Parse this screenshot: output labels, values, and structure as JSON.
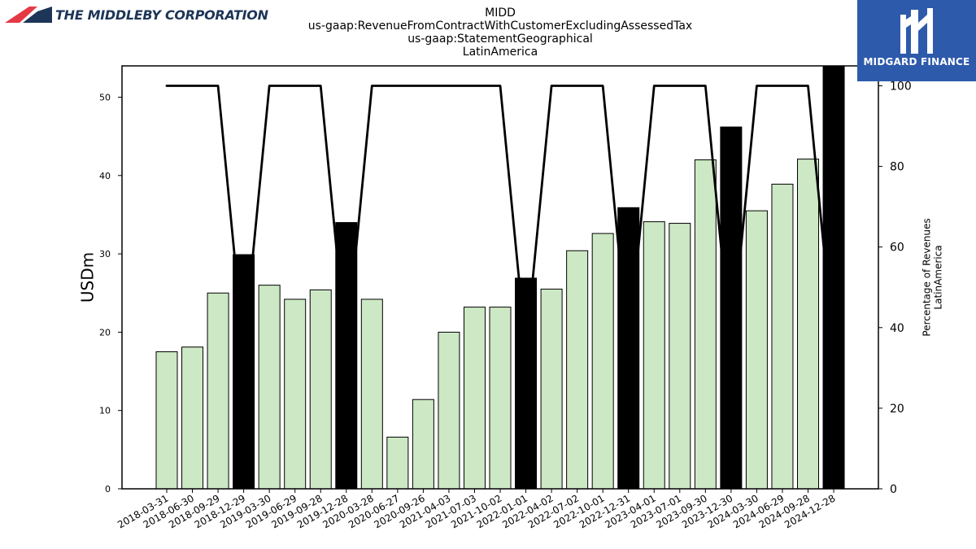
{
  "header": {
    "title_lines": [
      "MIDD",
      "us-gaap:RevenueFromContractWithCustomerExcludingAssessedTax",
      "us-gaap:StatementGeographical",
      "LatinAmerica"
    ]
  },
  "logos": {
    "left_text": "THE MIDDLEBY CORPORATION",
    "right_text": "MIDGARD FINANCE"
  },
  "colors": {
    "bar_light": "#cce8c4",
    "bar_dark": "#000000",
    "line": "#000000",
    "logo_blue": "#2e5aab",
    "logo_red": "#e63946",
    "logo_navy": "#1d3557"
  },
  "chart_data": {
    "type": "bar",
    "ylabel": "USDm",
    "y2label_lines": [
      "Percentage of Revenues",
      "LatinAmerica"
    ],
    "ylim": [
      0,
      54
    ],
    "y_ticks": [
      0,
      10,
      20,
      30,
      40,
      50
    ],
    "y2lim": [
      0,
      100
    ],
    "y2_ticks": [
      0,
      20,
      40,
      60,
      80,
      100
    ],
    "grid": false,
    "categories": [
      "2018-03-31",
      "2018-06-30",
      "2018-09-29",
      "2018-12-29",
      "2019-03-30",
      "2019-06-29",
      "2019-09-28",
      "2019-12-28",
      "2020-03-28",
      "2020-06-27",
      "2020-09-26",
      "2021-04-03",
      "2021-07-03",
      "2021-10-02",
      "2022-01-01",
      "2022-04-02",
      "2022-07-02",
      "2022-10-01",
      "2022-12-31",
      "2023-04-01",
      "2023-07-01",
      "2023-09-30",
      "2023-12-30",
      "2024-03-30",
      "2024-06-29",
      "2024-09-28",
      "2024-12-28"
    ],
    "series": [
      {
        "type": "bar",
        "values": [
          17.5,
          18.1,
          25.0,
          29.9,
          26.0,
          24.2,
          25.4,
          34.0,
          24.2,
          6.6,
          11.4,
          20.0,
          23.2,
          23.2,
          26.9,
          25.5,
          30.4,
          32.6,
          35.9,
          34.1,
          33.9,
          42.0,
          46.2,
          35.5,
          38.9,
          42.1,
          54.0
        ],
        "annual_flags": [
          false,
          false,
          false,
          true,
          false,
          false,
          false,
          true,
          false,
          false,
          false,
          false,
          false,
          false,
          true,
          false,
          false,
          false,
          true,
          false,
          false,
          false,
          true,
          false,
          false,
          false,
          true
        ]
      },
      {
        "type": "line",
        "axis": "right",
        "values": [
          100,
          100,
          100,
          null,
          100,
          100,
          100,
          null,
          100,
          100,
          100,
          100,
          100,
          100,
          null,
          100,
          100,
          100,
          null,
          100,
          100,
          100,
          null,
          100,
          100,
          100,
          null
        ]
      }
    ]
  }
}
